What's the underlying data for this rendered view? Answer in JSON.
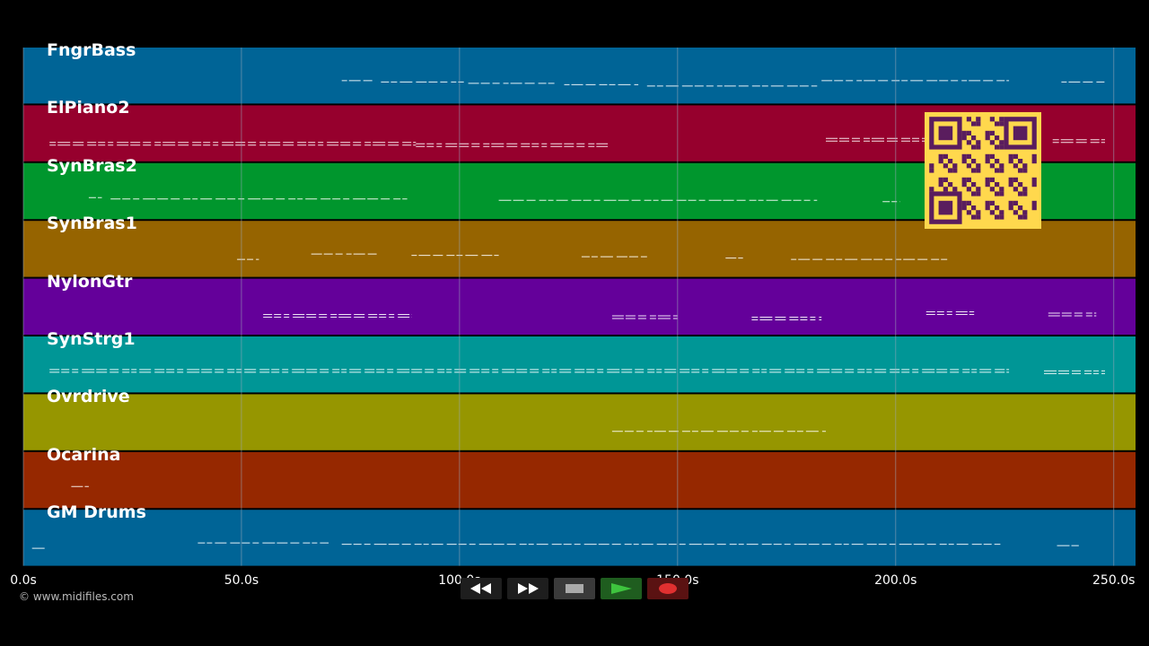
{
  "tracks": [
    {
      "name": "FngrBass",
      "color": "#006496"
    },
    {
      "name": "ElPiano2",
      "color": "#96002d"
    },
    {
      "name": "SynBras2",
      "color": "#00962d"
    },
    {
      "name": "SynBras1",
      "color": "#966400"
    },
    {
      "name": "NylonGtr",
      "color": "#64009a"
    },
    {
      "name": "SynStrg1",
      "color": "#009696"
    },
    {
      "name": "Ovrdrive",
      "color": "#969600"
    },
    {
      "name": "Ocarina",
      "color": "#962800"
    },
    {
      "name": "GM Drums",
      "color": "#006496"
    }
  ],
  "timeline": {
    "ticks": [
      "0.0s",
      "50.0s",
      "100.0s",
      "150.0s",
      "200.0s",
      "250.0s"
    ],
    "tick_values": [
      0,
      50,
      100,
      150,
      200,
      250
    ],
    "range": [
      0,
      255
    ]
  },
  "note_segments": [
    [
      [
        73,
        80
      ],
      [
        82,
        101
      ],
      [
        102,
        122
      ],
      [
        124,
        141
      ],
      [
        143,
        182
      ],
      [
        183,
        226
      ],
      [
        238,
        248
      ]
    ],
    [
      [
        6,
        90
      ],
      [
        90,
        134
      ],
      [
        184,
        232
      ],
      [
        236,
        248
      ]
    ],
    [
      [
        15,
        18
      ],
      [
        20,
        88
      ],
      [
        109,
        182
      ],
      [
        197,
        201
      ]
    ],
    [
      [
        49,
        54
      ],
      [
        66,
        81
      ],
      [
        89,
        109
      ],
      [
        128,
        143
      ],
      [
        161,
        165
      ],
      [
        176,
        212
      ]
    ],
    [
      [
        55,
        89
      ],
      [
        135,
        150
      ],
      [
        167,
        183
      ],
      [
        207,
        218
      ],
      [
        235,
        246
      ]
    ],
    [
      [
        6,
        226
      ],
      [
        234,
        248
      ]
    ],
    [
      [
        135,
        184
      ]
    ],
    [
      [
        11,
        15
      ]
    ],
    [
      [
        2,
        5
      ],
      [
        40,
        70
      ],
      [
        73,
        224
      ],
      [
        237,
        242
      ]
    ]
  ],
  "transport": {
    "rewind": "rewind-icon",
    "fast_forward": "fast-forward-icon",
    "stop": "stop-icon",
    "play": "play-icon",
    "record": "record-icon"
  },
  "copyright": "© www.midifiles.com",
  "colors": {
    "qr_bg": "#ffd84d",
    "qr_fg": "#5a1d5e",
    "grid": "#9aa7b8"
  }
}
